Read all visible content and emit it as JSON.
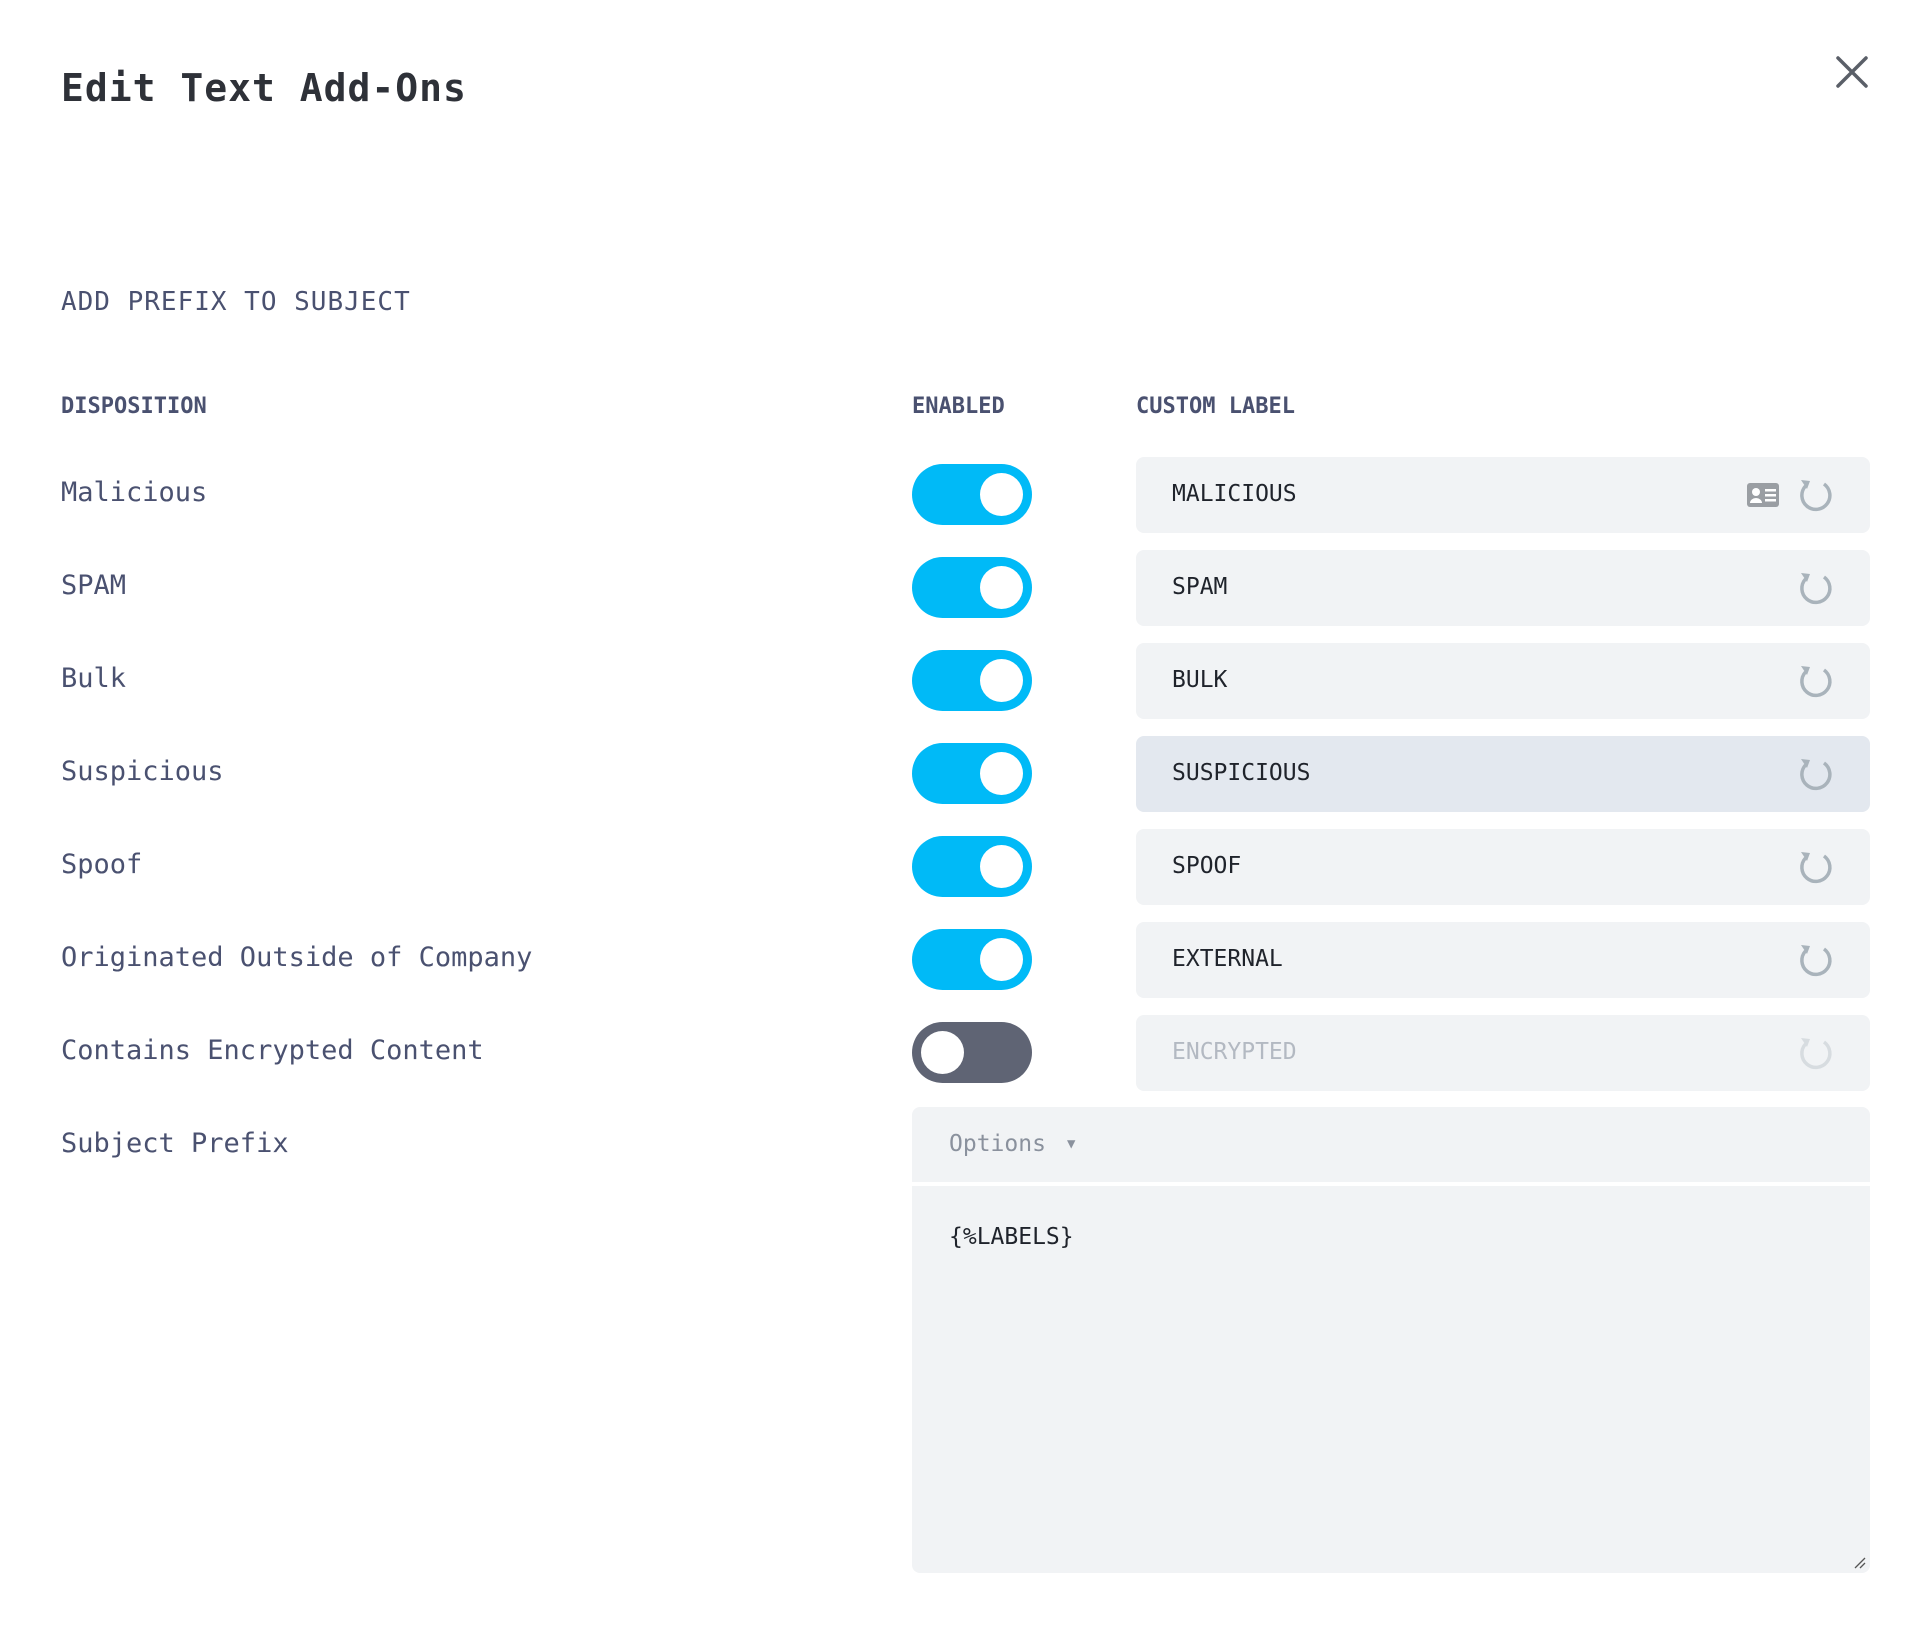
{
  "dialog": {
    "title": "Edit Text Add-Ons",
    "close_icon": "close-icon"
  },
  "section": {
    "title": "ADD PREFIX TO SUBJECT"
  },
  "headers": {
    "disposition": "DISPOSITION",
    "enabled": "ENABLED",
    "custom_label": "CUSTOM LABEL"
  },
  "rows": [
    {
      "disposition": "Malicious",
      "enabled": true,
      "label": "MALICIOUS"
    },
    {
      "disposition": "SPAM",
      "enabled": true,
      "label": "SPAM"
    },
    {
      "disposition": "Bulk",
      "enabled": true,
      "label": "BULK"
    },
    {
      "disposition": "Suspicious",
      "enabled": true,
      "label": "SUSPICIOUS"
    },
    {
      "disposition": "Spoof",
      "enabled": true,
      "label": "SPOOF"
    },
    {
      "disposition": "Originated Outside of Company",
      "enabled": true,
      "label": "EXTERNAL"
    },
    {
      "disposition": "Contains Encrypted Content",
      "enabled": false,
      "label": "ENCRYPTED"
    }
  ],
  "subject_prefix": {
    "label": "Subject Prefix",
    "options_label": "Options",
    "value": "{%LABELS}"
  },
  "colors": {
    "toggle_on": "#00baf7",
    "toggle_off": "#5f6474",
    "input_bg": "#f1f3f5",
    "focused_input_bg": "#e3e8ef"
  }
}
